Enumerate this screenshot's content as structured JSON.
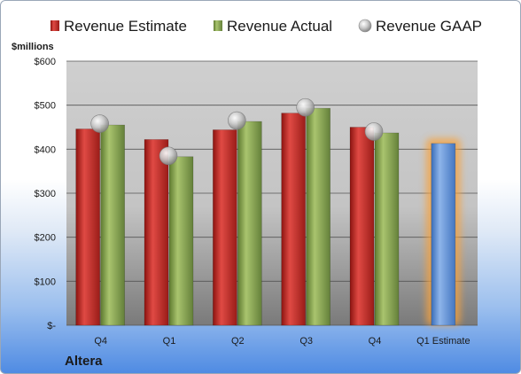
{
  "company": "Altera",
  "chart_data": {
    "type": "bar",
    "y_unit_label": "$millions",
    "categories": [
      "Q4",
      "Q1",
      "Q2",
      "Q3",
      "Q4",
      "Q1 Estimate"
    ],
    "ylim": [
      0,
      600
    ],
    "y_ticks": [
      0,
      100,
      200,
      300,
      400,
      500,
      600
    ],
    "y_tick_labels": [
      "$-",
      "$100",
      "$200",
      "$300",
      "$400",
      "$500",
      "$600"
    ],
    "grid": true,
    "legend_position": "top",
    "series": [
      {
        "name": "Revenue Estimate",
        "type": "bar",
        "color": "#c0302c",
        "values": [
          446,
          422,
          444,
          482,
          450,
          null
        ]
      },
      {
        "name": "Revenue Actual",
        "type": "bar",
        "color": "#8aa556",
        "values": [
          455,
          383,
          463,
          493,
          437,
          null
        ]
      },
      {
        "name": "Revenue GAAP",
        "type": "marker",
        "color": "#c8c8c8",
        "values": [
          458,
          385,
          465,
          495,
          440,
          null
        ]
      },
      {
        "name": "Revenue Estimate (forecast)",
        "type": "bar",
        "color": "#5b8fd6",
        "values": [
          null,
          null,
          null,
          null,
          null,
          413
        ],
        "highlight": true
      }
    ]
  }
}
